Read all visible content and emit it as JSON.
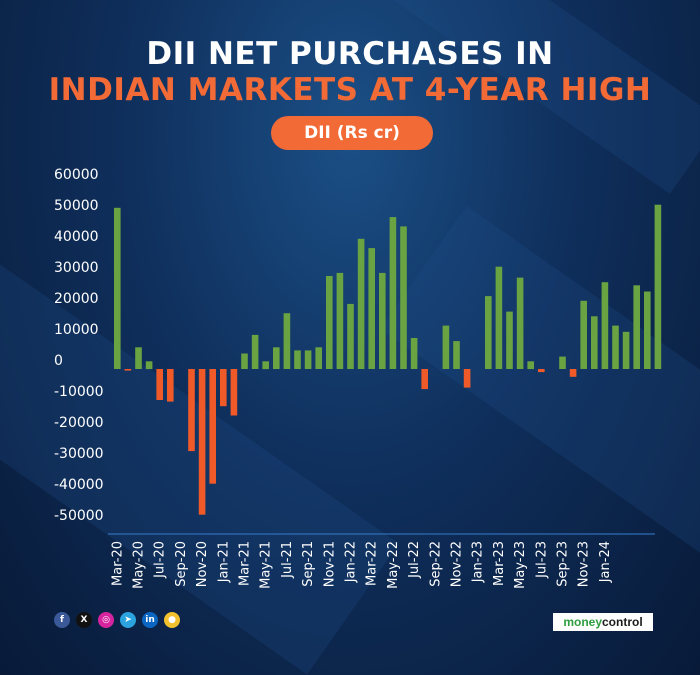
{
  "header": {
    "title_line1": "DII NET PURCHASES IN",
    "title_line2": "INDIAN MARKETS AT 4-YEAR HIGH",
    "series_label": "DII (Rs cr)"
  },
  "colors": {
    "positive": "#6aa342",
    "negative": "#f05a28",
    "accent": "#f26a36",
    "text": "#ffffff",
    "axis_line": "#2f6db5"
  },
  "social_icons": [
    {
      "name": "facebook-icon",
      "glyph": "f",
      "color": "#3b5998"
    },
    {
      "name": "x-icon",
      "glyph": "X",
      "color": "#111111"
    },
    {
      "name": "instagram-icon",
      "glyph": "◎",
      "color": "#d6249f"
    },
    {
      "name": "telegram-icon",
      "glyph": "➤",
      "color": "#2aa3de"
    },
    {
      "name": "linkedin-icon",
      "glyph": "in",
      "color": "#0a66c2"
    },
    {
      "name": "notification-icon",
      "glyph": "●",
      "color": "#f2c12e"
    }
  ],
  "brand": {
    "logo_text": "moneycontrol",
    "logo_colors": [
      "#2e9e3f",
      "#1b1b1b"
    ]
  },
  "chart_data": {
    "type": "bar",
    "title": "DII NET PURCHASES IN INDIAN MARKETS AT 4-YEAR HIGH",
    "ylabel": "",
    "xlabel": "",
    "ylim": [
      -55000,
      62000
    ],
    "yticks": [
      60000,
      50000,
      40000,
      30000,
      20000,
      10000,
      0,
      -10000,
      -20000,
      -30000,
      -40000,
      -50000
    ],
    "grid": false,
    "legend": "none",
    "series": [
      {
        "name": "DII (Rs cr)",
        "values": [
          52000,
          -500,
          7000,
          2500,
          -10000,
          -10500,
          0,
          -26500,
          -47000,
          -37000,
          -12000,
          -15000,
          5000,
          11000,
          2500,
          7000,
          18000,
          6000,
          6000,
          7000,
          30000,
          31000,
          21000,
          42000,
          39000,
          31000,
          49000,
          46000,
          10000,
          -6500,
          0,
          14000,
          9000,
          -6000,
          0,
          23500,
          33000,
          18500,
          29500,
          2500,
          -1000,
          0,
          4000,
          -2500,
          22000,
          17000,
          28000,
          14000,
          12000,
          27000,
          25000,
          53000
        ]
      }
    ],
    "x_tick_labels": [
      "Mar-20",
      "May-20",
      "Jul-20",
      "Sep-20",
      "Nov-20",
      "Jan-21",
      "Mar-21",
      "May-21",
      "Jul-21",
      "Sep-21",
      "Nov-21",
      "Jan-22",
      "Mar-22",
      "May-22",
      "Jul-22",
      "Sep-22",
      "Nov-22",
      "Jan-23",
      "Mar-23",
      "May-23",
      "Jul-23",
      "Sep-23",
      "Nov-23",
      "Jan-24"
    ]
  }
}
